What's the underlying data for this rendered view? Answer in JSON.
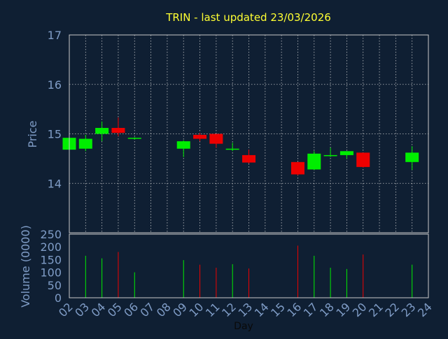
{
  "chart_data": [
    {
      "type": "candlestick",
      "title": "TRIN - last updated 23/03/2026",
      "ylabel": "Price",
      "ylim": [
        13.0,
        17.0
      ],
      "yticks": [
        14,
        15,
        16,
        17
      ],
      "grid": true,
      "colors": {
        "up": "#00ee00",
        "down": "#ee0000"
      },
      "ohlc": [
        {
          "x": "02",
          "open": 14.68,
          "high": 14.92,
          "low": 14.65,
          "close": 14.92
        },
        {
          "x": "03",
          "open": 14.7,
          "high": 14.98,
          "low": 14.65,
          "close": 14.9
        },
        {
          "x": "04",
          "open": 15.0,
          "high": 15.25,
          "low": 14.85,
          "close": 15.12
        },
        {
          "x": "05",
          "open": 15.12,
          "high": 15.33,
          "low": 14.95,
          "close": 15.02
        },
        {
          "x": "06",
          "open": 14.9,
          "high": 14.93,
          "low": 14.88,
          "close": 14.92
        },
        {
          "x": "09",
          "open": 14.7,
          "high": 14.87,
          "low": 14.53,
          "close": 14.85
        },
        {
          "x": "10",
          "open": 14.98,
          "high": 15.02,
          "low": 14.85,
          "close": 14.9
        },
        {
          "x": "11",
          "open": 15.0,
          "high": 15.0,
          "low": 14.72,
          "close": 14.8
        },
        {
          "x": "12",
          "open": 14.68,
          "high": 14.82,
          "low": 14.65,
          "close": 14.7
        },
        {
          "x": "13",
          "open": 14.57,
          "high": 14.68,
          "low": 14.4,
          "close": 14.42
        },
        {
          "x": "16",
          "open": 14.43,
          "high": 14.43,
          "low": 14.16,
          "close": 14.18
        },
        {
          "x": "17",
          "open": 14.28,
          "high": 14.65,
          "low": 14.27,
          "close": 14.6
        },
        {
          "x": "18",
          "open": 14.55,
          "high": 14.72,
          "low": 14.53,
          "close": 14.57
        },
        {
          "x": "19",
          "open": 14.57,
          "high": 14.65,
          "low": 14.5,
          "close": 14.65
        },
        {
          "x": "20",
          "open": 14.62,
          "high": 14.62,
          "low": 14.32,
          "close": 14.33
        },
        {
          "x": "23",
          "open": 14.43,
          "high": 14.75,
          "low": 14.27,
          "close": 14.62
        }
      ]
    },
    {
      "type": "bar",
      "ylabel": "Volume (0000)",
      "xlabel": "Day",
      "ylim": [
        0,
        250
      ],
      "yticks": [
        0,
        50,
        100,
        150,
        200,
        250
      ],
      "categories": [
        "02",
        "03",
        "04",
        "05",
        "06",
        "07",
        "08",
        "09",
        "10",
        "11",
        "12",
        "13",
        "14",
        "15",
        "16",
        "17",
        "18",
        "19",
        "20",
        "21",
        "22",
        "23",
        "24"
      ],
      "volumes": [
        {
          "x": "03",
          "value": 165,
          "dir": "up"
        },
        {
          "x": "04",
          "value": 155,
          "dir": "up"
        },
        {
          "x": "05",
          "value": 180,
          "dir": "down"
        },
        {
          "x": "06",
          "value": 100,
          "dir": "up"
        },
        {
          "x": "09",
          "value": 148,
          "dir": "up"
        },
        {
          "x": "10",
          "value": 130,
          "dir": "down"
        },
        {
          "x": "11",
          "value": 118,
          "dir": "down"
        },
        {
          "x": "12",
          "value": 132,
          "dir": "up"
        },
        {
          "x": "13",
          "value": 115,
          "dir": "down"
        },
        {
          "x": "16",
          "value": 205,
          "dir": "down"
        },
        {
          "x": "17",
          "value": 165,
          "dir": "up"
        },
        {
          "x": "18",
          "value": 118,
          "dir": "up"
        },
        {
          "x": "19",
          "value": 113,
          "dir": "up"
        },
        {
          "x": "20",
          "value": 170,
          "dir": "down"
        },
        {
          "x": "23",
          "value": 130,
          "dir": "up"
        }
      ]
    }
  ]
}
